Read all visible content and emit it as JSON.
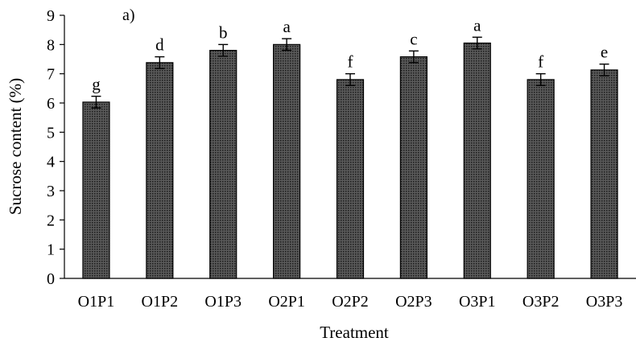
{
  "chart_data": {
    "type": "bar",
    "panel_label": "a)",
    "xlabel": "Treatment",
    "ylabel": "Sucrose content (%)",
    "ylim": [
      0,
      9
    ],
    "yticks": [
      "0",
      "1",
      "2",
      "3",
      "4",
      "5",
      "6",
      "7",
      "8",
      "9"
    ],
    "categories": [
      "O1P1",
      "O1P2",
      "O1P3",
      "O2P1",
      "O2P2",
      "O2P3",
      "O3P1",
      "O3P2",
      "O3P3"
    ],
    "values": [
      6.03,
      7.38,
      7.8,
      8.0,
      6.8,
      7.58,
      8.05,
      6.8,
      7.13
    ],
    "errors": [
      0.2,
      0.2,
      0.2,
      0.2,
      0.2,
      0.2,
      0.2,
      0.2,
      0.2
    ],
    "significance_letters": [
      "g",
      "d",
      "b",
      "a",
      "f",
      "c",
      "a",
      "f",
      "e"
    ],
    "bar_fill": "#3a3a3a",
    "grid": false,
    "legend": "none"
  }
}
